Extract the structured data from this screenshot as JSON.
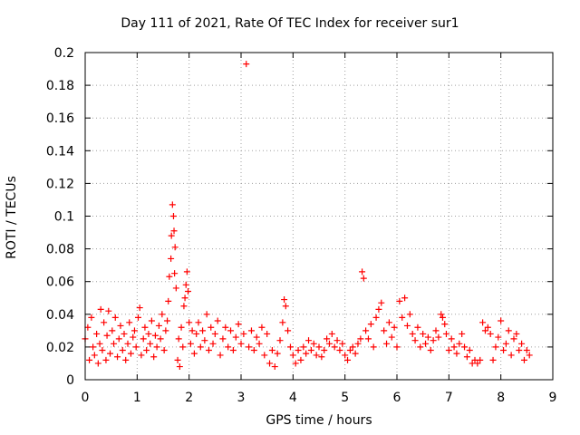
{
  "chart_data": {
    "type": "scatter",
    "title": "Day 111 of 2021, Rate Of TEC Index for receiver sur1",
    "xlabel": "GPS time / hours",
    "ylabel": "ROTI / TECUs",
    "xlim": [
      0,
      9
    ],
    "ylim": [
      0,
      0.2
    ],
    "xticks": [
      0,
      1,
      2,
      3,
      4,
      5,
      6,
      7,
      8,
      9
    ],
    "yticks": [
      0,
      0.02,
      0.04,
      0.06,
      0.08,
      0.1,
      0.12,
      0.14,
      0.16,
      0.18,
      0.2
    ],
    "xtick_labels": [
      "0",
      "1",
      "2",
      "3",
      "4",
      "5",
      "6",
      "7",
      "8",
      "9"
    ],
    "ytick_labels": [
      "0",
      "0.02",
      "0.04",
      "0.06",
      "0.08",
      "0.1",
      "0.12",
      "0.14",
      "0.16",
      "0.18",
      "0.2"
    ],
    "grid": true,
    "marker": "+",
    "color": "#ff0000",
    "series": [
      {
        "name": "sur1",
        "points": [
          [
            0.0,
            0.025
          ],
          [
            0.05,
            0.032
          ],
          [
            0.08,
            0.012
          ],
          [
            0.12,
            0.038
          ],
          [
            0.15,
            0.02
          ],
          [
            0.18,
            0.015
          ],
          [
            0.22,
            0.028
          ],
          [
            0.25,
            0.01
          ],
          [
            0.28,
            0.022
          ],
          [
            0.3,
            0.043
          ],
          [
            0.33,
            0.018
          ],
          [
            0.36,
            0.035
          ],
          [
            0.4,
            0.012
          ],
          [
            0.42,
            0.027
          ],
          [
            0.45,
            0.042
          ],
          [
            0.48,
            0.016
          ],
          [
            0.52,
            0.03
          ],
          [
            0.55,
            0.022
          ],
          [
            0.58,
            0.038
          ],
          [
            0.62,
            0.014
          ],
          [
            0.65,
            0.025
          ],
          [
            0.68,
            0.033
          ],
          [
            0.72,
            0.018
          ],
          [
            0.75,
            0.028
          ],
          [
            0.78,
            0.012
          ],
          [
            0.82,
            0.022
          ],
          [
            0.85,
            0.035
          ],
          [
            0.88,
            0.016
          ],
          [
            0.92,
            0.026
          ],
          [
            0.95,
            0.03
          ],
          [
            0.98,
            0.02
          ],
          [
            1.02,
            0.038
          ],
          [
            1.05,
            0.044
          ],
          [
            1.08,
            0.015
          ],
          [
            1.12,
            0.025
          ],
          [
            1.15,
            0.032
          ],
          [
            1.18,
            0.018
          ],
          [
            1.22,
            0.028
          ],
          [
            1.25,
            0.022
          ],
          [
            1.28,
            0.036
          ],
          [
            1.32,
            0.014
          ],
          [
            1.35,
            0.027
          ],
          [
            1.38,
            0.02
          ],
          [
            1.42,
            0.033
          ],
          [
            1.45,
            0.025
          ],
          [
            1.48,
            0.04
          ],
          [
            1.52,
            0.018
          ],
          [
            1.55,
            0.03
          ],
          [
            1.58,
            0.036
          ],
          [
            1.6,
            0.048
          ],
          [
            1.62,
            0.063
          ],
          [
            1.65,
            0.074
          ],
          [
            1.66,
            0.088
          ],
          [
            1.68,
            0.107
          ],
          [
            1.7,
            0.1
          ],
          [
            1.71,
            0.091
          ],
          [
            1.72,
            0.065
          ],
          [
            1.73,
            0.081
          ],
          [
            1.75,
            0.056
          ],
          [
            1.78,
            0.012
          ],
          [
            1.8,
            0.025
          ],
          [
            1.82,
            0.008
          ],
          [
            1.85,
            0.032
          ],
          [
            1.88,
            0.02
          ],
          [
            1.9,
            0.045
          ],
          [
            1.92,
            0.05
          ],
          [
            1.94,
            0.058
          ],
          [
            1.96,
            0.066
          ],
          [
            1.98,
            0.054
          ],
          [
            2.0,
            0.035
          ],
          [
            2.03,
            0.022
          ],
          [
            2.06,
            0.03
          ],
          [
            2.1,
            0.016
          ],
          [
            2.14,
            0.028
          ],
          [
            2.18,
            0.035
          ],
          [
            2.22,
            0.02
          ],
          [
            2.26,
            0.03
          ],
          [
            2.3,
            0.024
          ],
          [
            2.34,
            0.04
          ],
          [
            2.38,
            0.018
          ],
          [
            2.42,
            0.032
          ],
          [
            2.46,
            0.022
          ],
          [
            2.5,
            0.028
          ],
          [
            2.55,
            0.036
          ],
          [
            2.6,
            0.015
          ],
          [
            2.65,
            0.025
          ],
          [
            2.7,
            0.032
          ],
          [
            2.75,
            0.02
          ],
          [
            2.8,
            0.03
          ],
          [
            2.85,
            0.018
          ],
          [
            2.9,
            0.026
          ],
          [
            2.95,
            0.034
          ],
          [
            3.0,
            0.022
          ],
          [
            3.05,
            0.028
          ],
          [
            3.1,
            0.193
          ],
          [
            3.15,
            0.02
          ],
          [
            3.2,
            0.03
          ],
          [
            3.25,
            0.018
          ],
          [
            3.3,
            0.026
          ],
          [
            3.35,
            0.022
          ],
          [
            3.4,
            0.032
          ],
          [
            3.45,
            0.015
          ],
          [
            3.5,
            0.028
          ],
          [
            3.55,
            0.01
          ],
          [
            3.6,
            0.018
          ],
          [
            3.65,
            0.008
          ],
          [
            3.7,
            0.016
          ],
          [
            3.75,
            0.024
          ],
          [
            3.8,
            0.035
          ],
          [
            3.83,
            0.049
          ],
          [
            3.86,
            0.045
          ],
          [
            3.9,
            0.03
          ],
          [
            3.95,
            0.02
          ],
          [
            4.0,
            0.015
          ],
          [
            4.05,
            0.01
          ],
          [
            4.1,
            0.018
          ],
          [
            4.15,
            0.012
          ],
          [
            4.2,
            0.02
          ],
          [
            4.25,
            0.016
          ],
          [
            4.3,
            0.024
          ],
          [
            4.35,
            0.018
          ],
          [
            4.4,
            0.022
          ],
          [
            4.45,
            0.015
          ],
          [
            4.5,
            0.02
          ],
          [
            4.55,
            0.014
          ],
          [
            4.6,
            0.018
          ],
          [
            4.65,
            0.025
          ],
          [
            4.7,
            0.022
          ],
          [
            4.75,
            0.028
          ],
          [
            4.8,
            0.02
          ],
          [
            4.85,
            0.024
          ],
          [
            4.9,
            0.018
          ],
          [
            4.95,
            0.022
          ],
          [
            5.0,
            0.015
          ],
          [
            5.05,
            0.012
          ],
          [
            5.1,
            0.018
          ],
          [
            5.15,
            0.02
          ],
          [
            5.2,
            0.016
          ],
          [
            5.25,
            0.022
          ],
          [
            5.3,
            0.025
          ],
          [
            5.33,
            0.066
          ],
          [
            5.36,
            0.062
          ],
          [
            5.4,
            0.03
          ],
          [
            5.45,
            0.025
          ],
          [
            5.5,
            0.034
          ],
          [
            5.55,
            0.02
          ],
          [
            5.6,
            0.038
          ],
          [
            5.65,
            0.043
          ],
          [
            5.7,
            0.047
          ],
          [
            5.75,
            0.03
          ],
          [
            5.8,
            0.022
          ],
          [
            5.85,
            0.035
          ],
          [
            5.9,
            0.026
          ],
          [
            5.95,
            0.032
          ],
          [
            6.0,
            0.02
          ],
          [
            6.05,
            0.048
          ],
          [
            6.1,
            0.038
          ],
          [
            6.15,
            0.05
          ],
          [
            6.2,
            0.033
          ],
          [
            6.25,
            0.04
          ],
          [
            6.3,
            0.028
          ],
          [
            6.35,
            0.024
          ],
          [
            6.4,
            0.032
          ],
          [
            6.45,
            0.02
          ],
          [
            6.5,
            0.028
          ],
          [
            6.55,
            0.022
          ],
          [
            6.6,
            0.026
          ],
          [
            6.65,
            0.018
          ],
          [
            6.7,
            0.024
          ],
          [
            6.75,
            0.03
          ],
          [
            6.8,
            0.026
          ],
          [
            6.85,
            0.04
          ],
          [
            6.88,
            0.038
          ],
          [
            6.92,
            0.034
          ],
          [
            6.95,
            0.028
          ],
          [
            7.0,
            0.018
          ],
          [
            7.05,
            0.025
          ],
          [
            7.1,
            0.02
          ],
          [
            7.15,
            0.016
          ],
          [
            7.2,
            0.022
          ],
          [
            7.25,
            0.028
          ],
          [
            7.3,
            0.02
          ],
          [
            7.35,
            0.014
          ],
          [
            7.4,
            0.018
          ],
          [
            7.45,
            0.01
          ],
          [
            7.5,
            0.012
          ],
          [
            7.55,
            0.01
          ],
          [
            7.6,
            0.012
          ],
          [
            7.65,
            0.035
          ],
          [
            7.7,
            0.03
          ],
          [
            7.75,
            0.032
          ],
          [
            7.8,
            0.028
          ],
          [
            7.85,
            0.012
          ],
          [
            7.9,
            0.02
          ],
          [
            7.95,
            0.026
          ],
          [
            8.0,
            0.036
          ],
          [
            8.05,
            0.018
          ],
          [
            8.1,
            0.022
          ],
          [
            8.15,
            0.03
          ],
          [
            8.2,
            0.015
          ],
          [
            8.25,
            0.025
          ],
          [
            8.3,
            0.028
          ],
          [
            8.35,
            0.018
          ],
          [
            8.4,
            0.022
          ],
          [
            8.45,
            0.012
          ],
          [
            8.5,
            0.018
          ],
          [
            8.55,
            0.015
          ]
        ]
      }
    ]
  }
}
